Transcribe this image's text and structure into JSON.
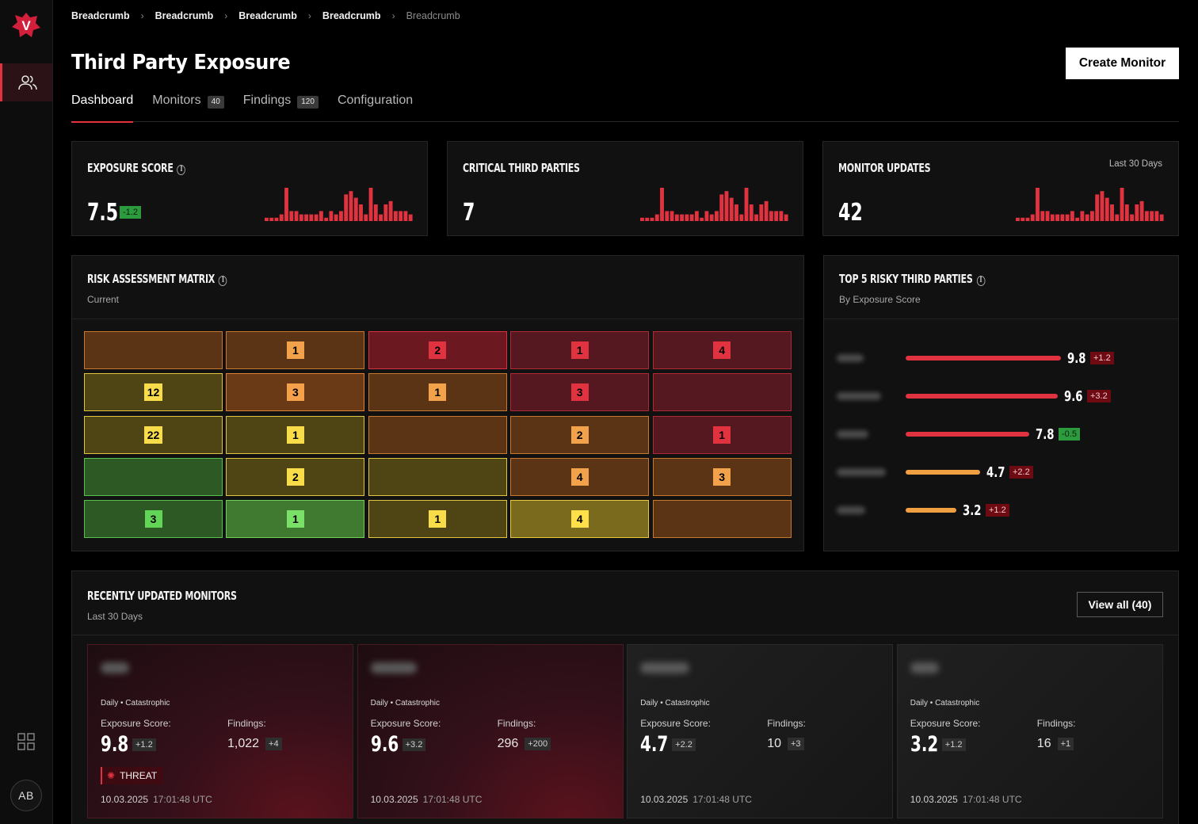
{
  "sidebar": {
    "logo_letter": "V",
    "avatar_initials": "AB"
  },
  "breadcrumbs": [
    "Breadcrumb",
    "Breadcrumb",
    "Breadcrumb",
    "Breadcrumb",
    "Breadcrumb"
  ],
  "page": {
    "title": "Third Party Exposure",
    "create_button": "Create Monitor"
  },
  "tabs": [
    {
      "label": "Dashboard",
      "count": null,
      "active": true
    },
    {
      "label": "Monitors",
      "count": "40",
      "active": false
    },
    {
      "label": "Findings",
      "count": "120",
      "active": false
    },
    {
      "label": "Configuration",
      "count": null,
      "active": false
    }
  ],
  "stats": {
    "exposure": {
      "title": "Exposure Score",
      "value": "7.5",
      "delta": "-1.2"
    },
    "critical": {
      "title": "Critical Third Parties",
      "value": "7"
    },
    "updates": {
      "title": "Monitor Updates",
      "value": "42",
      "period": "Last 30 Days"
    },
    "sparkline_values": [
      1,
      1,
      1,
      2,
      10,
      3,
      3,
      2,
      2,
      2,
      2,
      3,
      1,
      3,
      2,
      3,
      8,
      9,
      7,
      5,
      2,
      10,
      5,
      2,
      5,
      6,
      3,
      3,
      3,
      2
    ],
    "accent_color": "#e0323f"
  },
  "matrix": {
    "title": "Risk Assessment Matrix",
    "subtitle": "Current",
    "rows": [
      [
        null,
        "1",
        "2",
        "1",
        "4"
      ],
      [
        "12",
        "3",
        "1",
        "3",
        null
      ],
      [
        "22",
        "1",
        null,
        "2",
        "1"
      ],
      [
        null,
        "2",
        null,
        "4",
        "3"
      ],
      [
        "3",
        "1",
        "1",
        "4",
        null
      ]
    ]
  },
  "top5": {
    "title": "Top 5 Risky Third Parties",
    "subtitle": "By Exposure Score",
    "items": [
      {
        "score": "9.8",
        "delta": "+1.2",
        "delta_kind": "red",
        "bar_fraction": 0.98,
        "bar_color": "#e0323f"
      },
      {
        "score": "9.6",
        "delta": "+3.2",
        "delta_kind": "red",
        "bar_fraction": 0.96,
        "bar_color": "#e0323f"
      },
      {
        "score": "7.8",
        "delta": "-0.5",
        "delta_kind": "green",
        "bar_fraction": 0.78,
        "bar_color": "#e0323f"
      },
      {
        "score": "4.7",
        "delta": "+2.2",
        "delta_kind": "red",
        "bar_fraction": 0.47,
        "bar_color": "#f0a040"
      },
      {
        "score": "3.2",
        "delta": "+1.2",
        "delta_kind": "red",
        "bar_fraction": 0.32,
        "bar_color": "#f0a040"
      }
    ]
  },
  "monitors": {
    "title": "Recently Updated Monitors",
    "subtitle": "Last 30 Days",
    "view_all": "View all (40)",
    "score_label": "Exposure Score:",
    "findings_label": "Findings:",
    "items": [
      {
        "meta": "Daily • Catastrophic",
        "score": "9.8",
        "score_delta": "+1.2",
        "findings": "1,022",
        "findings_delta": "+4",
        "threat": "THREAT",
        "date": "10.03.2025",
        "time": "17:01:48 UTC",
        "tone": "red"
      },
      {
        "meta": "Daily • Catastrophic",
        "score": "9.6",
        "score_delta": "+3.2",
        "findings": "296",
        "findings_delta": "+200",
        "threat": null,
        "date": "10.03.2025",
        "time": "17:01:48 UTC",
        "tone": "red"
      },
      {
        "meta": "Daily • Catastrophic",
        "score": "4.7",
        "score_delta": "+2.2",
        "findings": "10",
        "findings_delta": "+3",
        "threat": null,
        "date": "10.03.2025",
        "time": "17:01:48 UTC",
        "tone": "gray"
      },
      {
        "meta": "Daily • Catastrophic",
        "score": "3.2",
        "score_delta": "+1.2",
        "findings": "16",
        "findings_delta": "+1",
        "threat": null,
        "date": "10.03.2025",
        "time": "17:01:48 UTC",
        "tone": "gray"
      }
    ]
  }
}
